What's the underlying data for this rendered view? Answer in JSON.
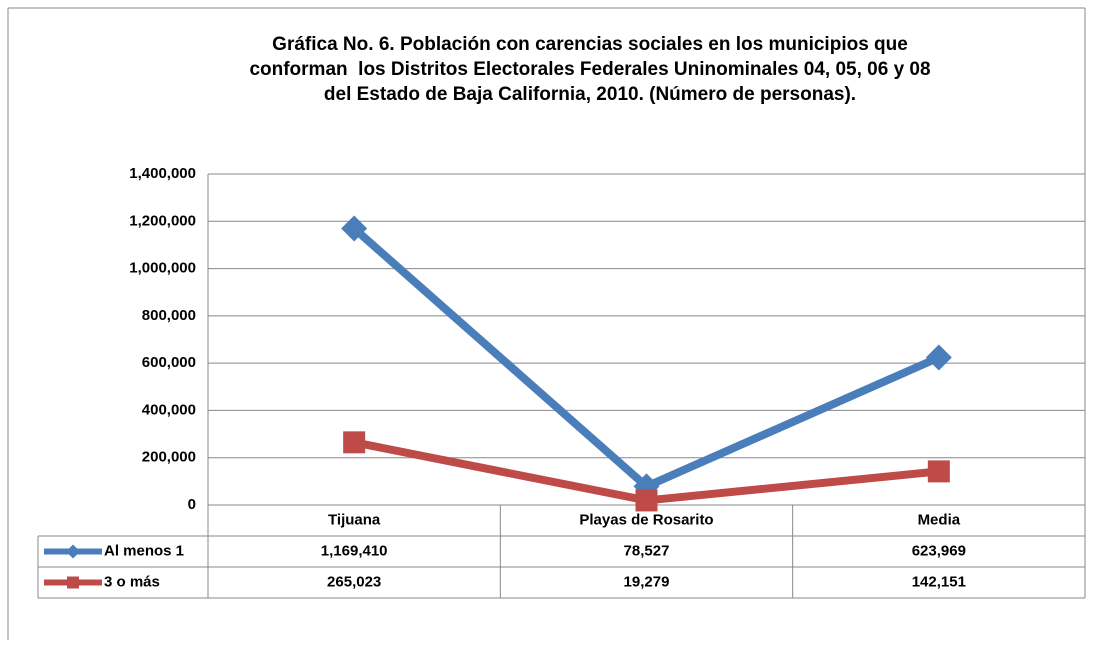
{
  "chart_data": {
    "type": "line",
    "title": [
      "Gráfica No. 6. Población con carencias sociales en los municipios que",
      "conforman  los Distritos Electorales Federales Uninominales 04, 05, 06 y 08",
      "del Estado de Baja California, 2010. (Número de personas)."
    ],
    "categories": [
      "Tijuana",
      "Playas de Rosarito",
      "Media"
    ],
    "series": [
      {
        "name": "Al menos 1",
        "color": "#4a7ebb",
        "marker": "diamond",
        "values": [
          1169410,
          78527,
          623969
        ],
        "value_labels": [
          "1,169,410",
          "78,527",
          "623,969"
        ]
      },
      {
        "name": "3 o más",
        "color": "#be4b48",
        "marker": "square",
        "values": [
          265023,
          19279,
          142151
        ],
        "value_labels": [
          "265,023",
          "19,279",
          "142,151"
        ]
      }
    ],
    "ylim": [
      0,
      1400000
    ],
    "yticks": [
      0,
      {
        "value": 200000,
        "label": "200,000"
      },
      {
        "value": 400000,
        "label": "400,000"
      },
      {
        "value": 600000,
        "label": "600,000"
      },
      {
        "value": 800000,
        "label": "800,000"
      },
      {
        "value": 1000000,
        "label": "1,000,000"
      },
      {
        "value": 1200000,
        "label": "1,200,000"
      },
      {
        "value": 1400000,
        "label": "1,400,000"
      }
    ],
    "grid": true
  }
}
